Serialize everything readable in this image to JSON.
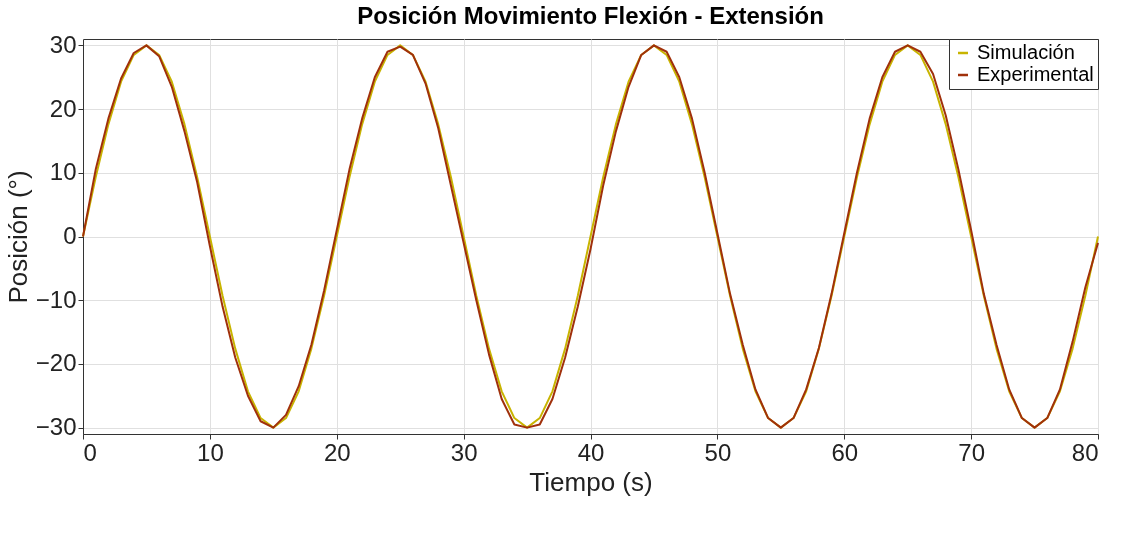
{
  "chart_data": {
    "type": "line",
    "title": "Posición Movimiento Flexión - Extensión",
    "xlabel": "Tiempo (s)",
    "ylabel": "Posición (°)",
    "x": [
      0,
      1,
      2,
      3,
      4,
      5,
      6,
      7,
      8,
      9,
      10,
      11,
      12,
      13,
      14,
      15,
      16,
      17,
      18,
      19,
      20,
      21,
      22,
      23,
      24,
      25,
      26,
      27,
      28,
      29,
      30,
      31,
      32,
      33,
      34,
      35,
      36,
      37,
      38,
      39,
      40,
      41,
      42,
      43,
      44,
      45,
      46,
      47,
      48,
      49,
      50,
      51,
      52,
      53,
      54,
      55,
      56,
      57,
      58,
      59,
      60,
      61,
      62,
      63,
      64,
      65,
      66,
      67,
      68,
      69,
      70,
      71,
      72,
      73,
      74,
      75,
      76,
      77,
      78,
      79,
      80
    ],
    "series": [
      {
        "name": "Simulación",
        "color": "#c8b400",
        "values": [
          0,
          9.3,
          17.6,
          24.3,
          28.5,
          30,
          28.5,
          24.3,
          17.6,
          9.3,
          0,
          -9.3,
          -17.6,
          -24.3,
          -28.5,
          -30,
          -28.5,
          -24.3,
          -17.6,
          -9.3,
          0,
          9.3,
          17.6,
          24.3,
          28.5,
          30,
          28.5,
          24.3,
          17.6,
          9.3,
          0,
          -9.3,
          -17.6,
          -24.3,
          -28.5,
          -30,
          -28.5,
          -24.3,
          -17.6,
          -9.3,
          0,
          9.3,
          17.6,
          24.3,
          28.5,
          30,
          28.5,
          24.3,
          17.6,
          9.3,
          0,
          -9.3,
          -17.6,
          -24.3,
          -28.5,
          -30,
          -28.5,
          -24.3,
          -17.6,
          -9.3,
          0,
          9.3,
          17.6,
          24.3,
          28.5,
          30,
          28.5,
          24.3,
          17.6,
          9.3,
          0,
          -9.3,
          -17.6,
          -24.3,
          -28.5,
          -30,
          -28.5,
          -24.3,
          -17.6,
          -9.3,
          0
        ]
      },
      {
        "name": "Experimental",
        "color": "#a0300b",
        "values": [
          0,
          10.5,
          18.5,
          24.8,
          28.8,
          30,
          28.3,
          23.5,
          16.5,
          8.5,
          -1.5,
          -11,
          -19,
          -25,
          -29,
          -30,
          -28,
          -23.5,
          -17,
          -8.5,
          1,
          10.5,
          18.5,
          25,
          29,
          29.8,
          28.5,
          24,
          17,
          8,
          -1,
          -10,
          -18.5,
          -25.5,
          -29.5,
          -30,
          -29.5,
          -25.5,
          -19,
          -11,
          -2,
          8,
          16.5,
          23.5,
          28.5,
          30,
          29,
          25,
          18.5,
          10,
          0.5,
          -9,
          -17,
          -24,
          -28.5,
          -30,
          -28.5,
          -24,
          -17.5,
          -9,
          0.5,
          10,
          18.5,
          25,
          29,
          30,
          29,
          25.5,
          19,
          10.5,
          1,
          -9,
          -17,
          -24,
          -28.5,
          -30,
          -28.5,
          -24,
          -16.5,
          -8,
          -1
        ]
      }
    ],
    "xlim": [
      0,
      80
    ],
    "xticks": [
      0,
      10,
      20,
      30,
      40,
      50,
      60,
      70,
      80
    ],
    "ylim": [
      -31,
      31
    ],
    "yticks": [
      -30,
      -20,
      -10,
      0,
      10,
      20,
      30
    ],
    "grid": true,
    "legend": "top right",
    "marker": "none",
    "line_style": "solid"
  }
}
